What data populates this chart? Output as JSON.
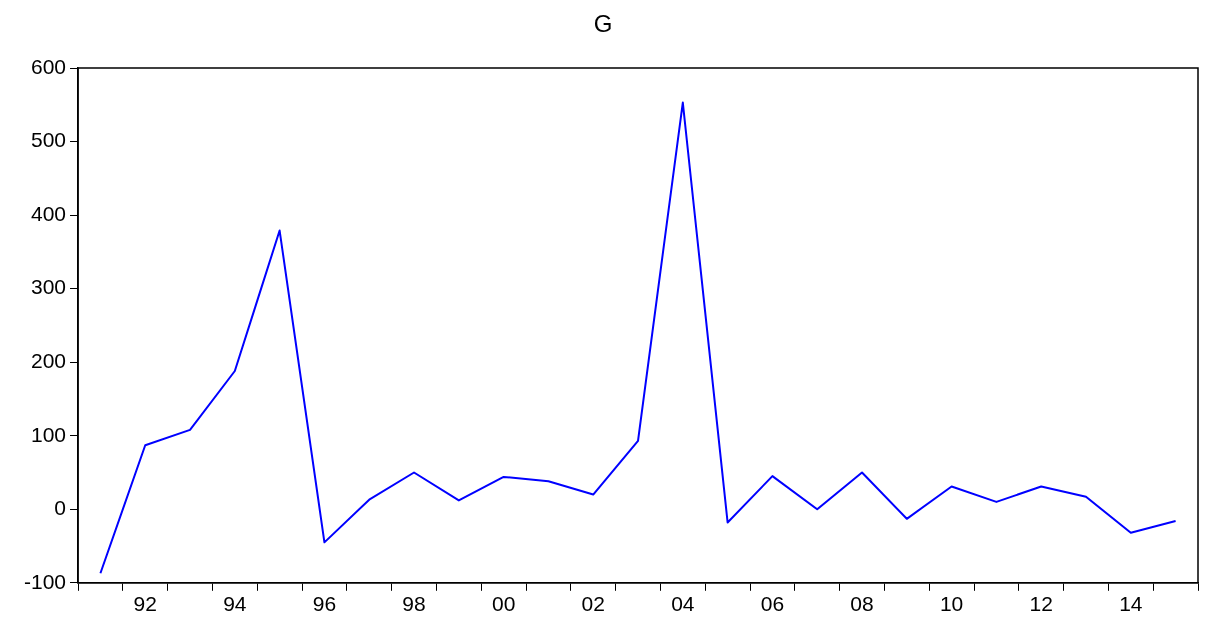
{
  "chart_data": {
    "type": "line",
    "title": "G",
    "categories": [
      null,
      "92",
      null,
      "94",
      null,
      "96",
      null,
      "98",
      null,
      "00",
      null,
      "02",
      null,
      "04",
      null,
      "06",
      null,
      "08",
      null,
      "10",
      null,
      "12",
      null,
      "14",
      null
    ],
    "series": [
      {
        "color": "#0000ff",
        "values": [
          -87,
          87,
          108,
          188,
          379,
          -45,
          13,
          50,
          12,
          44,
          38,
          20,
          93,
          553,
          -18,
          45,
          0,
          50,
          -13,
          31,
          10,
          31,
          17,
          -32,
          -16
        ]
      }
    ],
    "ylim": [
      -100,
      600
    ],
    "yticks": [
      -100,
      0,
      100,
      200,
      300,
      400,
      500,
      600
    ],
    "grid": false,
    "legend": false,
    "marker": "none",
    "line_style": "solid"
  }
}
